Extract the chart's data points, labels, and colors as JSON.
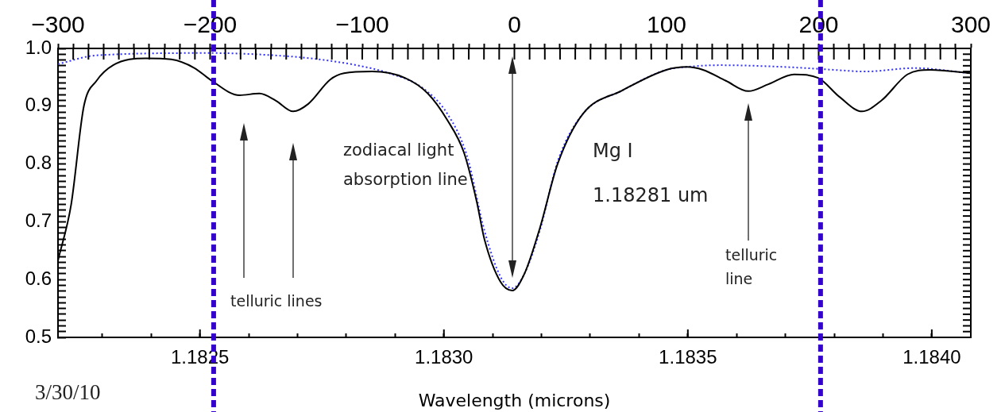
{
  "chart_data": {
    "type": "line",
    "xlabel": "Wavelength (microns)",
    "xlim": [
      1.182209,
      1.18408
    ],
    "xticks": [
      {
        "value": 1.1823,
        "label": null
      },
      {
        "value": 1.1824,
        "label": null
      },
      1.1825,
      {
        "value": 1.1826,
        "label": null
      },
      {
        "value": 1.1827,
        "label": null
      },
      {
        "value": 1.1828,
        "label": null
      },
      {
        "value": 1.1829,
        "label": null
      },
      {
        "value": 1.183,
        "label": "1.1830"
      },
      {
        "value": 1.1831,
        "label": null
      },
      {
        "value": 1.1832,
        "label": null
      },
      {
        "value": 1.1833,
        "label": null
      },
      {
        "value": 1.1834,
        "label": null
      },
      1.1835,
      {
        "value": 1.1836,
        "label": null
      },
      {
        "value": 1.1837,
        "label": null
      },
      {
        "value": 1.1838,
        "label": null
      },
      {
        "value": 1.1839,
        "label": null
      },
      {
        "value": 1.184,
        "label": "1.1840"
      }
    ],
    "x2lim": [
      -300,
      300
    ],
    "x2ticks": [
      {
        "value": -300,
        "label": "−300"
      },
      {
        "value": -290,
        "label": null
      },
      {
        "value": -280,
        "label": null
      },
      {
        "value": -270,
        "label": null
      },
      {
        "value": -260,
        "label": null
      },
      {
        "value": -250,
        "label": null
      },
      {
        "value": -240,
        "label": null
      },
      {
        "value": -230,
        "label": null
      },
      {
        "value": -220,
        "label": null
      },
      {
        "value": -210,
        "label": null
      },
      {
        "value": -200,
        "label": "−200"
      },
      {
        "value": -190,
        "label": null
      },
      {
        "value": -180,
        "label": null
      },
      {
        "value": -170,
        "label": null
      },
      {
        "value": -160,
        "label": null
      },
      {
        "value": -150,
        "label": null
      },
      {
        "value": -140,
        "label": null
      },
      {
        "value": -130,
        "label": null
      },
      {
        "value": -120,
        "label": null
      },
      {
        "value": -110,
        "label": null
      },
      {
        "value": -100,
        "label": "−100"
      },
      {
        "value": -90,
        "label": null
      },
      {
        "value": -80,
        "label": null
      },
      {
        "value": -70,
        "label": null
      },
      {
        "value": -60,
        "label": null
      },
      {
        "value": -50,
        "label": null
      },
      {
        "value": -40,
        "label": null
      },
      {
        "value": -30,
        "label": null
      },
      {
        "value": -20,
        "label": null
      },
      {
        "value": -10,
        "label": null
      },
      0,
      {
        "value": 10,
        "label": null
      },
      {
        "value": 20,
        "label": null
      },
      {
        "value": 30,
        "label": null
      },
      {
        "value": 40,
        "label": null
      },
      {
        "value": 50,
        "label": null
      },
      {
        "value": 60,
        "label": null
      },
      {
        "value": 70,
        "label": null
      },
      {
        "value": 80,
        "label": null
      },
      {
        "value": 90,
        "label": null
      },
      100,
      {
        "value": 110,
        "label": null
      },
      {
        "value": 120,
        "label": null
      },
      {
        "value": 130,
        "label": null
      },
      {
        "value": 140,
        "label": null
      },
      {
        "value": 150,
        "label": null
      },
      {
        "value": 160,
        "label": null
      },
      {
        "value": 170,
        "label": null
      },
      {
        "value": 180,
        "label": null
      },
      {
        "value": 190,
        "label": null
      },
      200,
      {
        "value": 210,
        "label": null
      },
      {
        "value": 220,
        "label": null
      },
      {
        "value": 230,
        "label": null
      },
      {
        "value": 240,
        "label": null
      },
      {
        "value": 250,
        "label": null
      },
      {
        "value": 260,
        "label": null
      },
      {
        "value": 270,
        "label": null
      },
      {
        "value": 280,
        "label": null
      },
      {
        "value": 290,
        "label": null
      },
      300
    ],
    "ylim": [
      0.5,
      1.0
    ],
    "yticks": [
      0.5,
      {
        "value": 0.51,
        "label": null
      },
      {
        "value": 0.52,
        "label": null
      },
      {
        "value": 0.53,
        "label": null
      },
      {
        "value": 0.54,
        "label": null
      },
      {
        "value": 0.55,
        "label": null
      },
      {
        "value": 0.56,
        "label": null
      },
      {
        "value": 0.57,
        "label": null
      },
      {
        "value": 0.58,
        "label": null
      },
      {
        "value": 0.59,
        "label": null
      },
      0.6,
      {
        "value": 0.61,
        "label": null
      },
      {
        "value": 0.62,
        "label": null
      },
      {
        "value": 0.63,
        "label": null
      },
      {
        "value": 0.64,
        "label": null
      },
      {
        "value": 0.65,
        "label": null
      },
      {
        "value": 0.66,
        "label": null
      },
      {
        "value": 0.67,
        "label": null
      },
      {
        "value": 0.68,
        "label": null
      },
      {
        "value": 0.69,
        "label": null
      },
      0.7,
      {
        "value": 0.71,
        "label": null
      },
      {
        "value": 0.72,
        "label": null
      },
      {
        "value": 0.73,
        "label": null
      },
      {
        "value": 0.74,
        "label": null
      },
      {
        "value": 0.75,
        "label": null
      },
      {
        "value": 0.76,
        "label": null
      },
      {
        "value": 0.77,
        "label": null
      },
      {
        "value": 0.78,
        "label": null
      },
      {
        "value": 0.79,
        "label": null
      },
      0.8,
      {
        "value": 0.81,
        "label": null
      },
      {
        "value": 0.82,
        "label": null
      },
      {
        "value": 0.83,
        "label": null
      },
      {
        "value": 0.84,
        "label": null
      },
      {
        "value": 0.85,
        "label": null
      },
      {
        "value": 0.86,
        "label": null
      },
      {
        "value": 0.87,
        "label": null
      },
      {
        "value": 0.88,
        "label": null
      },
      {
        "value": 0.89,
        "label": null
      },
      0.9,
      {
        "value": 0.91,
        "label": null
      },
      {
        "value": 0.92,
        "label": null
      },
      {
        "value": 0.93,
        "label": null
      },
      {
        "value": 0.94,
        "label": null
      },
      {
        "value": 0.95,
        "label": null
      },
      {
        "value": 0.96,
        "label": null
      },
      {
        "value": 0.97,
        "label": null
      },
      {
        "value": 0.98,
        "label": null
      },
      {
        "value": 0.99,
        "label": null
      },
      {
        "value": 1,
        "label": "1.0"
      }
    ],
    "marker": "none",
    "series": [
      {
        "color": "#000000",
        "line_style": "solid",
        "x": [
          1.182209,
          1.182236,
          1.182262,
          1.182288,
          1.182322,
          1.182389,
          1.182441,
          1.182489,
          1.182521,
          1.182581,
          1.182622,
          1.182655,
          1.182691,
          1.182722,
          1.182767,
          1.182795,
          1.182853,
          1.18292,
          1.182967,
          1.183007,
          1.183041,
          1.183067,
          1.183083,
          1.183116,
          1.18314,
          1.183165,
          1.183197,
          1.183233,
          1.183285,
          1.183365,
          1.183456,
          1.183498,
          1.183531,
          1.183578,
          1.183624,
          1.183665,
          1.183718,
          1.183767,
          1.183811,
          1.183857,
          1.183897,
          1.18395,
          1.183997,
          1.18408
        ],
        "values": [
          0.633,
          0.73,
          0.9,
          0.944,
          0.971,
          0.983,
          0.981,
          0.966,
          0.946,
          0.919,
          0.922,
          0.91,
          0.891,
          0.904,
          0.946,
          0.957,
          0.96,
          0.949,
          0.922,
          0.876,
          0.82,
          0.736,
          0.67,
          0.596,
          0.581,
          0.61,
          0.69,
          0.8,
          0.887,
          0.927,
          0.963,
          0.968,
          0.963,
          0.944,
          0.926,
          0.938,
          0.955,
          0.949,
          0.916,
          0.891,
          0.91,
          0.955,
          0.963,
          0.957
        ]
      },
      {
        "color": "#3333ff",
        "line_style": "dotted",
        "x": [
          1.182209,
          1.182288,
          1.182521,
          1.182687,
          1.182754,
          1.182821,
          1.182888,
          1.182954,
          1.183007,
          1.183047,
          1.183083,
          1.183116,
          1.18314,
          1.183165,
          1.183197,
          1.183233,
          1.183285,
          1.183365,
          1.183456,
          1.183498,
          1.183565,
          1.183697,
          1.183798,
          1.183863,
          1.183964,
          1.18408
        ],
        "values": [
          0.973,
          0.988,
          0.992,
          0.986,
          0.98,
          0.971,
          0.957,
          0.933,
          0.887,
          0.815,
          0.685,
          0.605,
          0.585,
          0.61,
          0.686,
          0.804,
          0.887,
          0.927,
          0.963,
          0.968,
          0.971,
          0.968,
          0.963,
          0.96,
          0.966,
          0.957
        ]
      }
    ],
    "ref_lines": [
      {
        "axis": "x",
        "value": 1.182528,
        "color": "#3300cc",
        "line_style": "dashed"
      },
      {
        "axis": "x",
        "value": 1.183772,
        "color": "#3300cc",
        "line_style": "dashed"
      }
    ],
    "annotations": [
      "zodiacal light",
      "absorption line",
      "Mg I",
      "1.18281 um",
      "telluric lines",
      "telluric",
      "line",
      "3/30/10"
    ]
  }
}
